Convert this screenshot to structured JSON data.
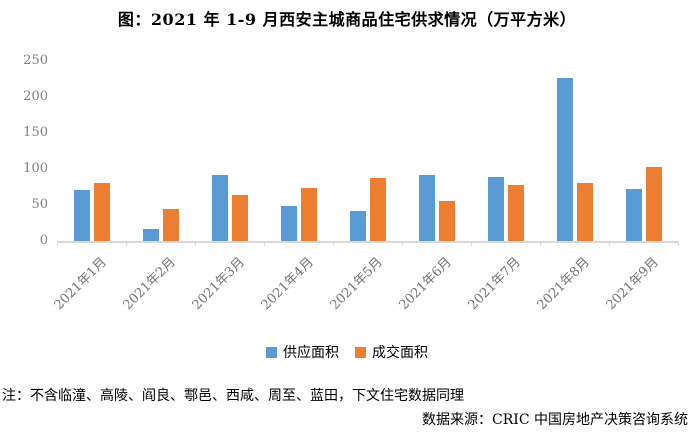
{
  "title": "图：2021 年 1-9 月西安主城商品住宅供求情况（万平方米）",
  "chart_data": {
    "type": "bar",
    "title": "图：2021 年 1-9 月西安主城商品住宅供求情况（万平方米）",
    "categories": [
      "2021年1月",
      "2021年2月",
      "2021年3月",
      "2021年4月",
      "2021年5月",
      "2021年6月",
      "2021年7月",
      "2021年8月",
      "2021年9月"
    ],
    "series": [
      {
        "name": "供应面积",
        "color": "#5B9BD5",
        "values": [
          71,
          16,
          91,
          49,
          41,
          92,
          89,
          226,
          72
        ]
      },
      {
        "name": "成交面积",
        "color": "#ED7D31",
        "values": [
          80,
          44,
          64,
          73,
          87,
          56,
          78,
          81,
          103
        ]
      }
    ],
    "xlabel": "",
    "ylabel": "",
    "ylim": [
      0,
      250
    ],
    "yticks": [
      0,
      50,
      100,
      150,
      200,
      250
    ],
    "grid": false,
    "legend_position": "bottom",
    "axis_color": "#D9D9D9",
    "tick_label_color": "#7F7F7F"
  },
  "legend": {
    "items": [
      {
        "label": "供应面积",
        "color": "#5B9BD5"
      },
      {
        "label": "成交面积",
        "color": "#ED7D31"
      }
    ]
  },
  "footer": {
    "note": "注：不含临潼、高陵、阎良、鄠邑、西咸、周至、蓝田，下文住宅数据同理",
    "source": "数据来源：CRIC 中国房地产决策咨询系统"
  }
}
